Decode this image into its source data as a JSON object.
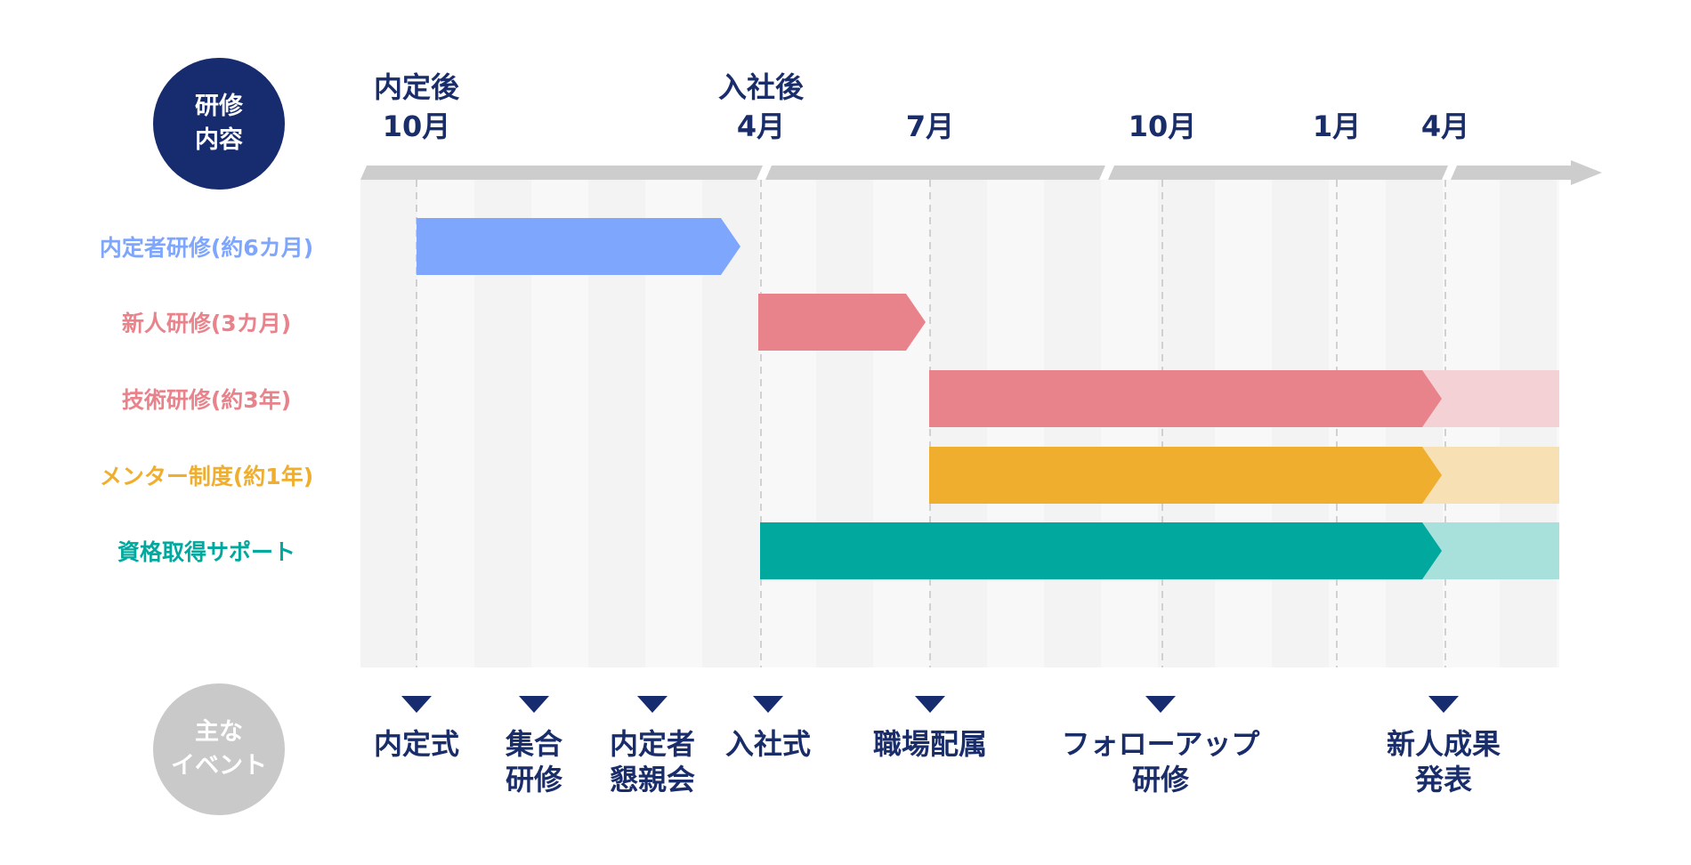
{
  "headers": {
    "training_line1": "研修",
    "training_line2": "内容",
    "events_line1": "主な",
    "events_line2": "イベント"
  },
  "timeline": [
    {
      "line1": "内定後",
      "line2": "10月"
    },
    {
      "line1": "入社後",
      "line2": "4月"
    },
    {
      "line1": "",
      "line2": "7月"
    },
    {
      "line1": "",
      "line2": "10月"
    },
    {
      "line1": "",
      "line2": "1月"
    },
    {
      "line1": "",
      "line2": "4月"
    }
  ],
  "programs": [
    {
      "label": "内定者研修(約6カ月)",
      "color": "#7fa6fd",
      "fade_color": "",
      "continues": false
    },
    {
      "label": "新人研修(3カ月)",
      "color": "#e8838c",
      "fade_color": "",
      "continues": false
    },
    {
      "label": "技術研修(約3年)",
      "color": "#e8838c",
      "fade_color": "#f4d1d4",
      "continues": true
    },
    {
      "label": "メンター制度(約1年)",
      "color": "#f0ae2e",
      "fade_color": "#f7e0b4",
      "continues": true
    },
    {
      "label": "資格取得サポート",
      "color": "#00a89d",
      "fade_color": "#a8e0db",
      "continues": true
    }
  ],
  "events": [
    {
      "line1": "内定式",
      "line2": ""
    },
    {
      "line1": "集合",
      "line2": "研修"
    },
    {
      "line1": "内定者",
      "line2": "懇親会"
    },
    {
      "line1": "入社式",
      "line2": ""
    },
    {
      "line1": "職場配属",
      "line2": ""
    },
    {
      "line1": "フォローアップ",
      "line2": "研修"
    },
    {
      "line1": "新人成果",
      "line2": "発表"
    }
  ],
  "colors": {
    "navy": "#172c6e",
    "axis": "#cdcdcd",
    "grid_band_dark": "#f3f3f3",
    "grid_band_light": "#f8f8f8"
  }
}
